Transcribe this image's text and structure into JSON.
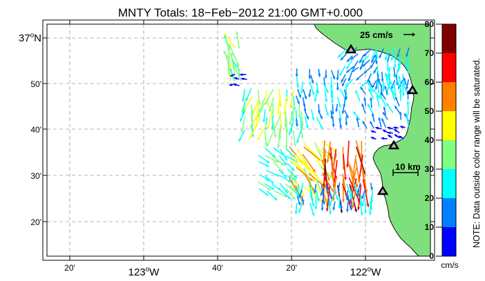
{
  "title": "MNTY Totals: 18−Feb−2012 21:00 GMT+0.000",
  "lat_ticks": [
    {
      "label": "37",
      "sup": "o",
      "suffix": "N",
      "major": true
    },
    {
      "label": "50'",
      "major": false
    },
    {
      "label": "40'",
      "major": false
    },
    {
      "label": "30'",
      "major": false
    },
    {
      "label": "20'",
      "major": false
    }
  ],
  "lon_ticks": [
    {
      "label": "20'",
      "major": false
    },
    {
      "label": "123",
      "sup": "o",
      "suffix": "W",
      "major": true
    },
    {
      "label": "40'",
      "major": false
    },
    {
      "label": "20'",
      "major": false
    },
    {
      "label": "122",
      "sup": "o",
      "suffix": "W",
      "major": true
    }
  ],
  "scale_vector_label": "25 cm/s",
  "scale_bar_label": "10 km",
  "colorbar": {
    "ticks": [
      "80",
      "70",
      "60",
      "50",
      "40",
      "30",
      "20",
      "10",
      "0"
    ],
    "unit": "cm/s",
    "note": "NOTE: Data outside color range will be saturated.",
    "colors": [
      "#800000",
      "#ff0000",
      "#ff8000",
      "#ffff00",
      "#80ff80",
      "#00ffff",
      "#0080ff",
      "#0000ff"
    ]
  },
  "land_color": "#7de07d",
  "stations": [
    "station-1",
    "station-2",
    "station-3",
    "station-4"
  ]
}
